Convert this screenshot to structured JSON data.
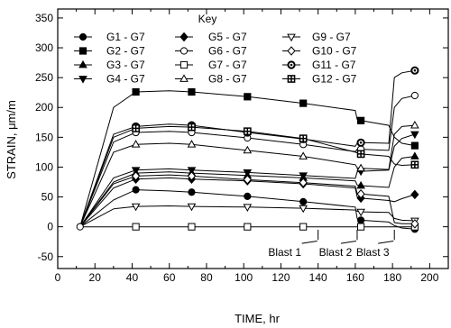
{
  "chart_data": {
    "type": "line",
    "title": "",
    "xlabel": "TIME, hr",
    "ylabel": "STRAIN, μm/m",
    "xlim": [
      0,
      210
    ],
    "ylim": [
      -70,
      365
    ],
    "x_ticks": [
      0,
      20,
      40,
      60,
      80,
      100,
      120,
      140,
      160,
      180,
      200
    ],
    "y_ticks": [
      -50,
      0,
      50,
      100,
      150,
      200,
      250,
      300,
      350
    ],
    "grid": false,
    "legend": {
      "title": "Key",
      "placement": "top-left"
    },
    "blasts": [
      {
        "label": "Blast 1",
        "x": 140
      },
      {
        "label": "Blast 2",
        "x": 161
      },
      {
        "label": "Blast 3",
        "x": 181
      }
    ],
    "series": [
      {
        "name": "G1 - G7",
        "marker": "filled-circle",
        "key": [
          [
            12,
            0
          ],
          [
            30,
            45
          ],
          [
            42,
            62
          ],
          [
            60,
            60
          ],
          [
            72,
            58
          ],
          [
            102,
            51
          ],
          [
            132,
            42
          ],
          [
            160,
            33
          ],
          [
            161,
            14
          ],
          [
            163,
            11
          ],
          [
            178,
            8
          ],
          [
            181,
            2
          ],
          [
            185,
            -2
          ],
          [
            192,
            -4
          ]
        ]
      },
      {
        "name": "G2 - G7",
        "marker": "filled-square",
        "key": [
          [
            12,
            0
          ],
          [
            30,
            200
          ],
          [
            42,
            226
          ],
          [
            60,
            228
          ],
          [
            72,
            226
          ],
          [
            102,
            218
          ],
          [
            132,
            207
          ],
          [
            160,
            195
          ],
          [
            161,
            180
          ],
          [
            163,
            178
          ],
          [
            178,
            170
          ],
          [
            181,
            150
          ],
          [
            185,
            140
          ],
          [
            192,
            136
          ]
        ]
      },
      {
        "name": "G3 - G7",
        "marker": "filled-triangle-up",
        "key": [
          [
            12,
            0
          ],
          [
            30,
            75
          ],
          [
            42,
            90
          ],
          [
            60,
            92
          ],
          [
            72,
            90
          ],
          [
            102,
            86
          ],
          [
            132,
            82
          ],
          [
            160,
            77
          ],
          [
            161,
            70
          ],
          [
            163,
            69
          ],
          [
            178,
            66
          ],
          [
            181,
            100
          ],
          [
            185,
            115
          ],
          [
            192,
            118
          ]
        ]
      },
      {
        "name": "G4 - G7",
        "marker": "filled-triangle-down",
        "key": [
          [
            12,
            0
          ],
          [
            30,
            82
          ],
          [
            42,
            95
          ],
          [
            60,
            97
          ],
          [
            72,
            95
          ],
          [
            102,
            91
          ],
          [
            132,
            86
          ],
          [
            160,
            81
          ],
          [
            161,
            92
          ],
          [
            163,
            93
          ],
          [
            178,
            95
          ],
          [
            181,
            135
          ],
          [
            185,
            148
          ],
          [
            192,
            155
          ]
        ]
      },
      {
        "name": "G5 - G7",
        "marker": "filled-diamond",
        "key": [
          [
            12,
            0
          ],
          [
            30,
            65
          ],
          [
            42,
            80
          ],
          [
            60,
            82
          ],
          [
            72,
            80
          ],
          [
            102,
            77
          ],
          [
            132,
            72
          ],
          [
            160,
            65
          ],
          [
            161,
            50
          ],
          [
            163,
            48
          ],
          [
            178,
            44
          ],
          [
            181,
            42
          ],
          [
            185,
            47
          ],
          [
            192,
            54
          ]
        ]
      },
      {
        "name": "G6 - G7",
        "marker": "open-circle",
        "key": [
          [
            12,
            0
          ],
          [
            30,
            142
          ],
          [
            42,
            158
          ],
          [
            60,
            160
          ],
          [
            72,
            158
          ],
          [
            102,
            149
          ],
          [
            132,
            138
          ],
          [
            160,
            126
          ],
          [
            161,
            130
          ],
          [
            163,
            130
          ],
          [
            178,
            128
          ],
          [
            181,
            200
          ],
          [
            185,
            215
          ],
          [
            192,
            220
          ]
        ]
      },
      {
        "name": "G7 - G7",
        "marker": "open-square",
        "key": [
          [
            12,
            0
          ],
          [
            192,
            0
          ]
        ]
      },
      {
        "name": "G8 - G7",
        "marker": "open-triangle-up",
        "key": [
          [
            12,
            0
          ],
          [
            30,
            125
          ],
          [
            42,
            138
          ],
          [
            60,
            140
          ],
          [
            72,
            138
          ],
          [
            102,
            128
          ],
          [
            132,
            118
          ],
          [
            160,
            104
          ],
          [
            161,
            99
          ],
          [
            163,
            98
          ],
          [
            178,
            96
          ],
          [
            181,
            155
          ],
          [
            185,
            168
          ],
          [
            192,
            170
          ]
        ]
      },
      {
        "name": "G9 - G7",
        "marker": "open-triangle-down",
        "key": [
          [
            12,
            0
          ],
          [
            30,
            30
          ],
          [
            42,
            34
          ],
          [
            60,
            35
          ],
          [
            72,
            34
          ],
          [
            102,
            33
          ],
          [
            132,
            31
          ],
          [
            160,
            28
          ],
          [
            161,
            26
          ],
          [
            163,
            25
          ],
          [
            178,
            24
          ],
          [
            181,
            14
          ],
          [
            185,
            11
          ],
          [
            192,
            10
          ]
        ]
      },
      {
        "name": "G10 - G7",
        "marker": "open-diamond",
        "key": [
          [
            12,
            0
          ],
          [
            30,
            72
          ],
          [
            42,
            85
          ],
          [
            60,
            87
          ],
          [
            72,
            85
          ],
          [
            102,
            79
          ],
          [
            132,
            74
          ],
          [
            160,
            68
          ],
          [
            161,
            56
          ],
          [
            163,
            55
          ],
          [
            178,
            51
          ],
          [
            181,
            7
          ],
          [
            185,
            5
          ],
          [
            192,
            5
          ]
        ]
      },
      {
        "name": "G11 - G7",
        "marker": "circle-dot",
        "key": [
          [
            12,
            0
          ],
          [
            30,
            155
          ],
          [
            42,
            168
          ],
          [
            60,
            172
          ],
          [
            72,
            170
          ],
          [
            102,
            158
          ],
          [
            132,
            147
          ],
          [
            160,
            135
          ],
          [
            161,
            140
          ],
          [
            163,
            141
          ],
          [
            178,
            140
          ],
          [
            181,
            250
          ],
          [
            185,
            258
          ],
          [
            192,
            262
          ]
        ]
      },
      {
        "name": "G12 - G7",
        "marker": "square-plus",
        "key": [
          [
            12,
            0
          ],
          [
            30,
            150
          ],
          [
            42,
            165
          ],
          [
            60,
            168
          ],
          [
            72,
            167
          ],
          [
            102,
            160
          ],
          [
            132,
            148
          ],
          [
            160,
            125
          ],
          [
            161,
            124
          ],
          [
            163,
            122
          ],
          [
            178,
            118
          ],
          [
            181,
            105
          ],
          [
            185,
            103
          ],
          [
            192,
            104
          ]
        ]
      }
    ]
  }
}
